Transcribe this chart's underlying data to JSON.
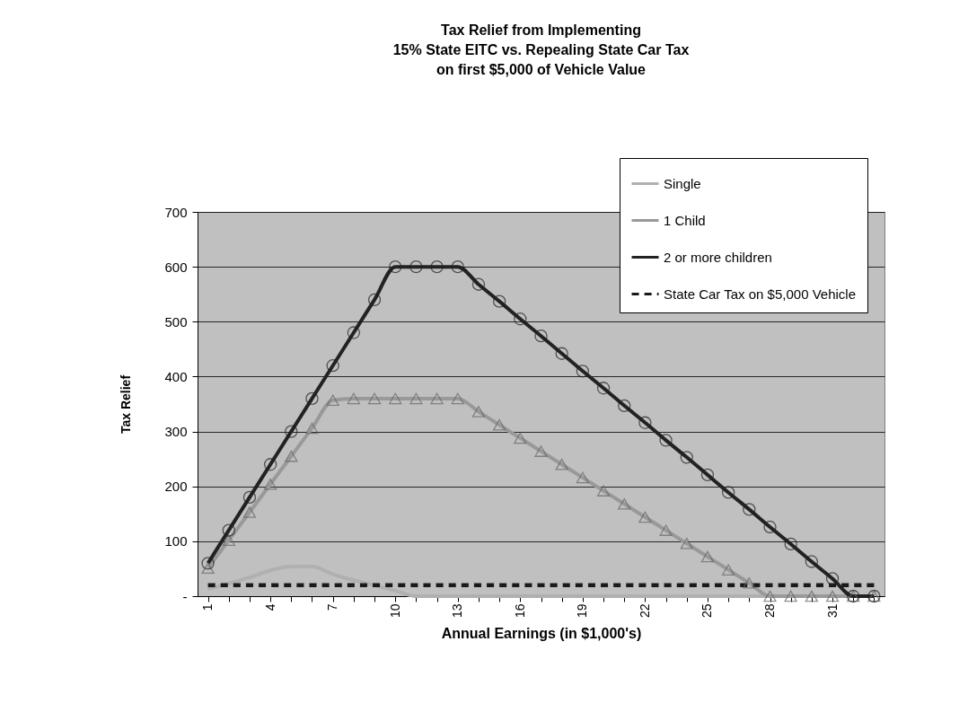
{
  "chart_data": {
    "type": "line",
    "title": "Tax Relief from Implementing\n15% State EITC vs. Repealing State Car Tax\non first $5,000 of Vehicle Value",
    "xlabel": "Annual Earnings (in $1,000's)",
    "ylabel": "Tax Relief",
    "categories": [
      "1",
      null,
      null,
      "4",
      null,
      null,
      "7",
      null,
      null,
      "10",
      null,
      null,
      "13",
      null,
      null,
      "16",
      null,
      null,
      "19",
      null,
      null,
      "22",
      null,
      null,
      "25",
      null,
      null,
      "28",
      null,
      null,
      "31",
      null,
      null
    ],
    "ylim": [
      0,
      700
    ],
    "yticks": [
      {
        "value": 0,
        "label": "-"
      },
      100,
      200,
      300,
      400,
      500,
      600,
      700
    ],
    "grid": "y",
    "legend": "top right",
    "series": [
      {
        "name": "Single",
        "color": "#b0b0b0",
        "marker": "none",
        "line_style": "solid",
        "values": [
          13,
          23,
          34,
          47,
          54,
          54,
          40,
          29,
          20,
          10,
          0,
          0,
          0,
          0,
          0,
          0,
          0,
          0,
          0,
          0,
          0,
          0,
          0,
          0,
          0,
          0,
          0,
          0,
          0,
          0,
          0,
          0,
          0
        ]
      },
      {
        "name": "1 Child",
        "color": "#999999",
        "marker": "triangle",
        "line_style": "solid",
        "values": [
          51,
          102,
          153,
          204,
          255,
          306,
          357,
          360,
          360,
          360,
          360,
          360,
          360,
          336,
          312,
          288,
          264,
          240,
          216,
          192,
          168,
          144,
          120,
          96,
          72,
          48,
          24,
          0,
          0,
          0,
          0,
          0,
          0
        ]
      },
      {
        "name": "2 or more children",
        "color": "#222222",
        "marker": "circle",
        "line_style": "solid",
        "values": [
          60,
          120,
          180,
          240,
          300,
          360,
          420,
          480,
          540,
          600,
          600,
          600,
          600,
          568,
          537,
          505,
          474,
          442,
          410,
          379,
          347,
          316,
          284,
          253,
          221,
          189,
          158,
          126,
          95,
          63,
          32,
          0,
          0
        ]
      },
      {
        "name": "State Car Tax on $5,000 Vehicle",
        "color": "#1a1a1a",
        "marker": "none",
        "line_style": "dashed",
        "values": [
          20,
          20,
          20,
          20,
          20,
          20,
          20,
          20,
          20,
          20,
          20,
          20,
          20,
          20,
          20,
          20,
          20,
          20,
          20,
          20,
          20,
          20,
          20,
          20,
          20,
          20,
          20,
          20,
          20,
          20,
          20,
          20,
          20
        ]
      }
    ]
  }
}
